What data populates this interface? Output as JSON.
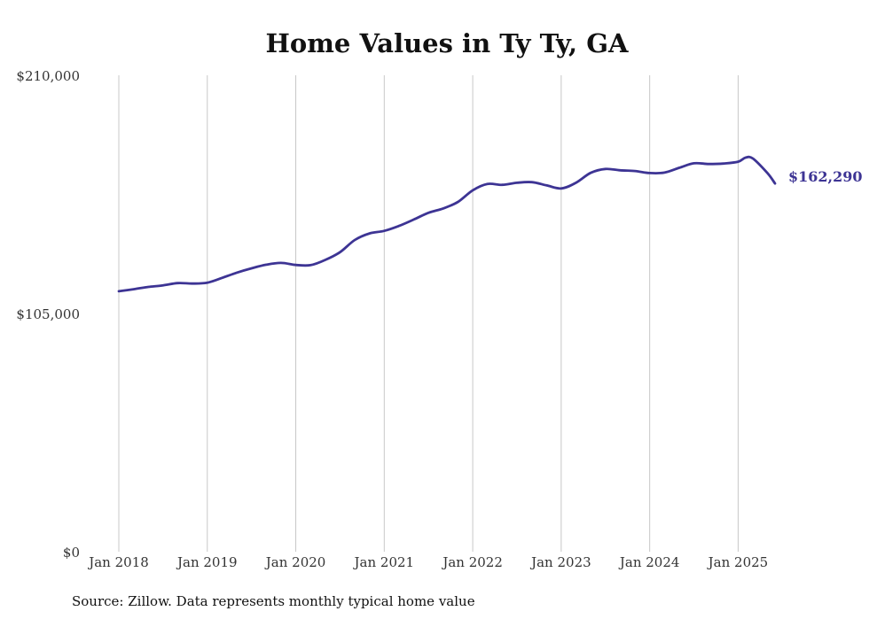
{
  "chart_data": {
    "type": "line",
    "title": "Home Values in Ty Ty, GA",
    "source": "Source: Zillow. Data represents monthly typical home value",
    "ylim": [
      0,
      210000
    ],
    "yticks": [
      {
        "value": 0,
        "label": "$0"
      },
      {
        "value": 105000,
        "label": "$105,000"
      },
      {
        "value": 210000,
        "label": "$210,000"
      }
    ],
    "xticks": [
      {
        "value": "2018-01",
        "label": "Jan 2018"
      },
      {
        "value": "2019-01",
        "label": "Jan 2019"
      },
      {
        "value": "2020-01",
        "label": "Jan 2020"
      },
      {
        "value": "2021-01",
        "label": "Jan 2021"
      },
      {
        "value": "2022-01",
        "label": "Jan 2022"
      },
      {
        "value": "2023-01",
        "label": "Jan 2023"
      },
      {
        "value": "2024-01",
        "label": "Jan 2024"
      },
      {
        "value": "2025-01",
        "label": "Jan 2025"
      }
    ],
    "grid": "vertical",
    "legend": "none",
    "line_color": "#3d3494",
    "end_label": "$162,290",
    "series": [
      {
        "x": [
          "2018-01",
          "2018-03",
          "2018-05",
          "2018-07",
          "2018-09",
          "2018-11",
          "2019-01",
          "2019-03",
          "2019-05",
          "2019-07",
          "2019-09",
          "2019-11",
          "2020-01",
          "2020-03",
          "2020-05",
          "2020-07",
          "2020-09",
          "2020-11",
          "2021-01",
          "2021-03",
          "2021-05",
          "2021-07",
          "2021-09",
          "2021-11",
          "2022-01",
          "2022-03",
          "2022-05",
          "2022-07",
          "2022-09",
          "2022-11",
          "2023-01",
          "2023-03",
          "2023-05",
          "2023-07",
          "2023-09",
          "2023-11",
          "2024-01",
          "2024-03",
          "2024-05",
          "2024-07",
          "2024-09",
          "2024-11",
          "2025-01",
          "2025-02",
          "2025-03",
          "2025-05",
          "2025-06"
        ],
        "y": [
          114800,
          115700,
          116700,
          117400,
          118400,
          118200,
          118600,
          120700,
          123000,
          124900,
          126500,
          127300,
          126400,
          126300,
          128600,
          132000,
          137400,
          140300,
          141400,
          143600,
          146400,
          149400,
          151300,
          154200,
          159300,
          162100,
          161700,
          162600,
          162900,
          161500,
          160100,
          162600,
          167000,
          168700,
          168100,
          167800,
          166900,
          167100,
          169200,
          171200,
          170900,
          171100,
          171900,
          173700,
          173300,
          166800,
          162290
        ]
      }
    ]
  }
}
